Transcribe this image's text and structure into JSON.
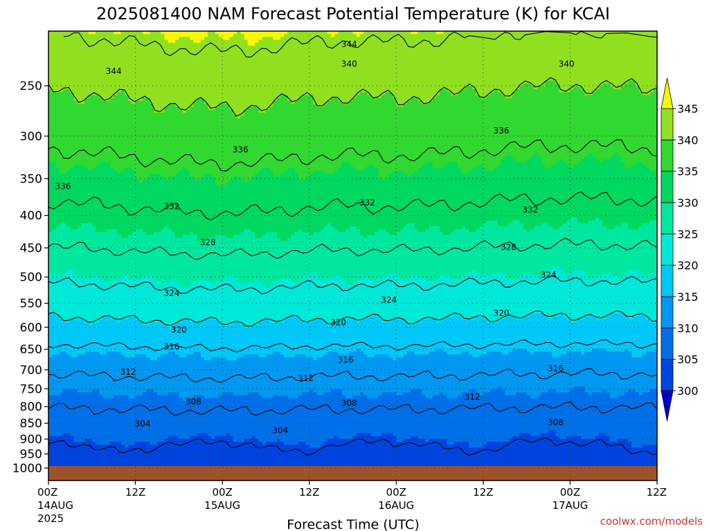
{
  "chart_data": {
    "type": "heatmap",
    "title": "2025081400 NAM Forecast Potential Temperature (K) for KCAI",
    "xlabel": "Forecast Time (UTC)",
    "ylabel": "",
    "y_scale": "log",
    "y_ticks": [
      250,
      300,
      350,
      400,
      450,
      500,
      550,
      600,
      650,
      700,
      750,
      800,
      850,
      900,
      950,
      1000
    ],
    "ylim": [
      1000,
      205
    ],
    "x_ticks": [
      {
        "hour": 0,
        "label": "00Z",
        "sub": "14AUG",
        "sub2": "2025"
      },
      {
        "hour": 12,
        "label": "12Z",
        "sub": "",
        "sub2": ""
      },
      {
        "hour": 24,
        "label": "00Z",
        "sub": "15AUG",
        "sub2": ""
      },
      {
        "hour": 36,
        "label": "12Z",
        "sub": "",
        "sub2": ""
      },
      {
        "hour": 48,
        "label": "00Z",
        "sub": "16AUG",
        "sub2": ""
      },
      {
        "hour": 60,
        "label": "12Z",
        "sub": "",
        "sub2": ""
      },
      {
        "hour": 72,
        "label": "00Z",
        "sub": "17AUG",
        "sub2": ""
      },
      {
        "hour": 84,
        "label": "12Z",
        "sub": "",
        "sub2": ""
      }
    ],
    "xlim": [
      0,
      84
    ],
    "colorbar": {
      "levels": [
        300,
        305,
        310,
        315,
        320,
        325,
        330,
        335,
        340,
        345
      ],
      "labels": [
        "300",
        "305",
        "310",
        "315",
        "320",
        "325",
        "330",
        "335",
        "340",
        "345"
      ],
      "colors": [
        "#0000cc",
        "#0044e0",
        "#0070e8",
        "#0098f0",
        "#00c8f8",
        "#00e8d8",
        "#00e8a0",
        "#00d860",
        "#30d830",
        "#90e020",
        "#f8f800"
      ]
    },
    "contour_interval": 4,
    "contour_labels": [
      {
        "value": 344,
        "hour": 41.5,
        "p": 215
      },
      {
        "value": 344,
        "hour": 9,
        "p": 237
      },
      {
        "value": 340,
        "hour": 41.5,
        "p": 231
      },
      {
        "value": 340,
        "hour": 71.5,
        "p": 231
      },
      {
        "value": 336,
        "hour": 26.5,
        "p": 315
      },
      {
        "value": 336,
        "hour": 62.5,
        "p": 294
      },
      {
        "value": 336,
        "hour": 2,
        "p": 360
      },
      {
        "value": 332,
        "hour": 17,
        "p": 387
      },
      {
        "value": 332,
        "hour": 44,
        "p": 382
      },
      {
        "value": 332,
        "hour": 66.5,
        "p": 392
      },
      {
        "value": 328,
        "hour": 22,
        "p": 441
      },
      {
        "value": 328,
        "hour": 63.5,
        "p": 449
      },
      {
        "value": 324,
        "hour": 17,
        "p": 530
      },
      {
        "value": 324,
        "hour": 47,
        "p": 544
      },
      {
        "value": 324,
        "hour": 69,
        "p": 496
      },
      {
        "value": 320,
        "hour": 18,
        "p": 606
      },
      {
        "value": 320,
        "hour": 40,
        "p": 590
      },
      {
        "value": 320,
        "hour": 62.5,
        "p": 570
      },
      {
        "value": 316,
        "hour": 17,
        "p": 644
      },
      {
        "value": 316,
        "hour": 41,
        "p": 675
      },
      {
        "value": 316,
        "hour": 70,
        "p": 697
      },
      {
        "value": 312,
        "hour": 11,
        "p": 706
      },
      {
        "value": 312,
        "hour": 35.5,
        "p": 722
      },
      {
        "value": 312,
        "hour": 58.5,
        "p": 772
      },
      {
        "value": 308,
        "hour": 20,
        "p": 786
      },
      {
        "value": 308,
        "hour": 41.5,
        "p": 790
      },
      {
        "value": 308,
        "hour": 70,
        "p": 847
      },
      {
        "value": 304,
        "hour": 13,
        "p": 852
      },
      {
        "value": 304,
        "hour": 32,
        "p": 872
      }
    ],
    "surface": {
      "p": 1000,
      "color": "#a0522d"
    },
    "grid": true
  },
  "credit": "coolwx.com/models"
}
